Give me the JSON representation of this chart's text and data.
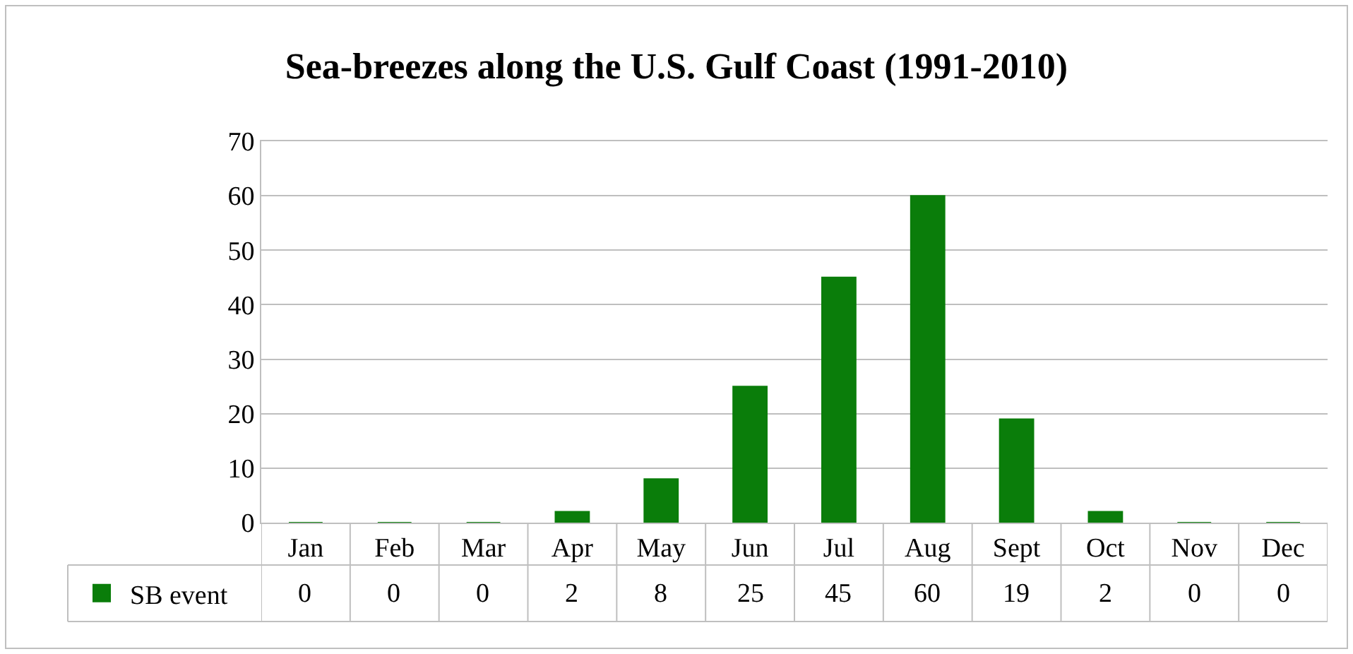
{
  "chart_data": {
    "type": "bar",
    "title": "Sea-breezes along the U.S. Gulf Coast (1991-2010)",
    "categories": [
      "Jan",
      "Feb",
      "Mar",
      "Apr",
      "May",
      "Jun",
      "Jul",
      "Aug",
      "Sept",
      "Oct",
      "Nov",
      "Dec"
    ],
    "series": [
      {
        "name": "SB event",
        "color": "#0a7d0a",
        "values": [
          0,
          0,
          0,
          2,
          8,
          25,
          45,
          60,
          19,
          2,
          0,
          0
        ]
      }
    ],
    "ylim": [
      0,
      70
    ],
    "yticks": [
      0,
      10,
      20,
      30,
      40,
      50,
      60,
      70
    ],
    "grid": "y",
    "legend": "bottom left",
    "data_labels": true
  }
}
